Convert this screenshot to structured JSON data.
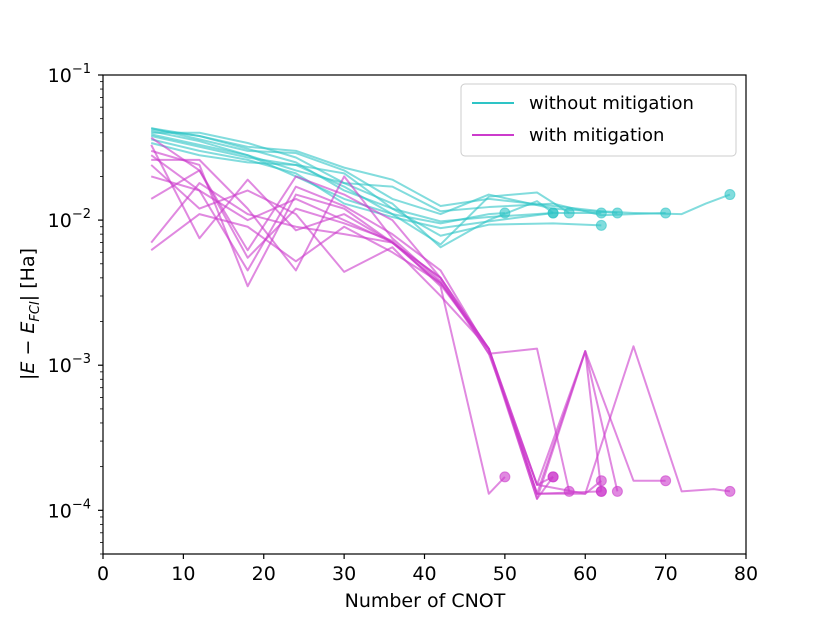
{
  "chart_data": {
    "type": "line",
    "title": "",
    "xlabel": "Number of CNOT",
    "ylabel": "|E − E_FCI| [Ha]",
    "ylabel_parts": {
      "a": "|",
      "b": "E",
      "c": " − ",
      "d": "E",
      "e": "FCI",
      "f": "| [Ha]"
    },
    "xscale": "linear",
    "yscale": "log",
    "xlim": [
      0,
      80
    ],
    "ylim": [
      5e-05,
      0.1
    ],
    "x_ticks": [
      0,
      10,
      20,
      30,
      40,
      50,
      60,
      70,
      80
    ],
    "x_tick_labels": [
      "0",
      "10",
      "20",
      "30",
      "40",
      "50",
      "60",
      "70",
      "80"
    ],
    "y_ticks": [
      0.0001,
      0.001,
      0.01,
      0.1
    ],
    "y_tick_labels": [
      {
        "base": "10",
        "exp": "−4"
      },
      {
        "base": "10",
        "exp": "−3"
      },
      {
        "base": "10",
        "exp": "−2"
      },
      {
        "base": "10",
        "exp": "−1"
      }
    ],
    "grid": false,
    "legend_position": "top-right",
    "legend": [
      {
        "label": "without mitigation",
        "color": "#2ec4c6"
      },
      {
        "label": "with mitigation",
        "color": "#cc3bcc"
      }
    ],
    "series": [
      {
        "group": "without mitigation",
        "color": "#2ec4c6",
        "x": [
          6,
          12,
          18,
          24,
          30,
          36,
          42,
          48,
          56
        ],
        "y": [
          0.043,
          0.038,
          0.031,
          0.025,
          0.016,
          0.012,
          0.0098,
          0.0105,
          0.0112
        ],
        "end_marker": true
      },
      {
        "group": "without mitigation",
        "color": "#2ec4c6",
        "x": [
          6,
          12,
          18,
          24,
          30,
          36,
          42,
          48,
          50
        ],
        "y": [
          0.041,
          0.035,
          0.028,
          0.02,
          0.014,
          0.011,
          0.0095,
          0.011,
          0.0112
        ],
        "end_marker": true
      },
      {
        "group": "without mitigation",
        "color": "#2ec4c6",
        "x": [
          6,
          12,
          18,
          24,
          30,
          36,
          42,
          48,
          54,
          56
        ],
        "y": [
          0.04,
          0.04,
          0.034,
          0.027,
          0.018,
          0.013,
          0.0065,
          0.01,
          0.0135,
          0.0112
        ],
        "end_marker": true
      },
      {
        "group": "without mitigation",
        "color": "#2ec4c6",
        "x": [
          6,
          12,
          18,
          24,
          30,
          36,
          42,
          48,
          54,
          58
        ],
        "y": [
          0.038,
          0.032,
          0.027,
          0.024,
          0.017,
          0.011,
          0.0068,
          0.0145,
          0.0155,
          0.0112
        ],
        "end_marker": true
      },
      {
        "group": "without mitigation",
        "color": "#2ec4c6",
        "x": [
          6,
          12,
          18,
          24,
          30,
          36,
          42,
          48,
          56,
          62
        ],
        "y": [
          0.036,
          0.03,
          0.026,
          0.021,
          0.013,
          0.0105,
          0.0088,
          0.0098,
          0.0112,
          0.0112
        ],
        "end_marker": true
      },
      {
        "group": "without mitigation",
        "color": "#2ec4c6",
        "x": [
          6,
          12,
          18,
          24,
          30,
          36,
          42,
          48,
          56,
          62
        ],
        "y": [
          0.034,
          0.028,
          0.025,
          0.024,
          0.021,
          0.012,
          0.0078,
          0.0093,
          0.0095,
          0.0092
        ],
        "end_marker": true
      },
      {
        "group": "without mitigation",
        "color": "#2ec4c6",
        "x": [
          6,
          12,
          18,
          24,
          30,
          36,
          42,
          48,
          56,
          64
        ],
        "y": [
          0.043,
          0.036,
          0.03,
          0.029,
          0.022,
          0.014,
          0.011,
          0.015,
          0.012,
          0.0112
        ],
        "end_marker": true
      },
      {
        "group": "without mitigation",
        "color": "#2ec4c6",
        "x": [
          6,
          12,
          18,
          24,
          30,
          36,
          42,
          48,
          56,
          62,
          70
        ],
        "y": [
          0.039,
          0.033,
          0.028,
          0.022,
          0.018,
          0.017,
          0.0115,
          0.0123,
          0.013,
          0.0108,
          0.0112
        ],
        "end_marker": true
      },
      {
        "group": "without mitigation",
        "color": "#2ec4c6",
        "x": [
          6,
          12,
          18,
          24,
          30,
          36,
          42,
          48,
          56,
          62,
          66,
          72,
          75,
          78
        ],
        "y": [
          0.042,
          0.038,
          0.032,
          0.03,
          0.023,
          0.019,
          0.0125,
          0.014,
          0.0125,
          0.0115,
          0.0112,
          0.011,
          0.013,
          0.015
        ],
        "end_marker": true
      },
      {
        "group": "with mitigation",
        "color": "#cc3bcc",
        "x": [
          6,
          12,
          18,
          24,
          30,
          36,
          42,
          48,
          50
        ],
        "y": [
          0.037,
          0.022,
          0.0055,
          0.012,
          0.0095,
          0.0072,
          0.0035,
          0.00013,
          0.00017
        ],
        "end_marker": true
      },
      {
        "group": "with mitigation",
        "color": "#cc3bcc",
        "x": [
          6,
          12,
          18,
          24,
          30,
          36,
          42,
          48,
          54,
          56
        ],
        "y": [
          0.033,
          0.0075,
          0.019,
          0.0085,
          0.011,
          0.007,
          0.0037,
          0.0013,
          0.00012,
          0.00017
        ],
        "end_marker": true
      },
      {
        "group": "with mitigation",
        "color": "#cc3bcc",
        "x": [
          6,
          12,
          18,
          24,
          30,
          36,
          42,
          48,
          54,
          56
        ],
        "y": [
          0.03,
          0.024,
          0.0035,
          0.015,
          0.012,
          0.007,
          0.004,
          0.0013,
          0.00015,
          0.00017
        ],
        "end_marker": true
      },
      {
        "group": "with mitigation",
        "color": "#cc3bcc",
        "x": [
          6,
          12,
          18,
          24,
          30,
          36,
          42,
          48,
          54,
          58
        ],
        "y": [
          0.026,
          0.026,
          0.012,
          0.0045,
          0.02,
          0.0075,
          0.0038,
          0.0012,
          0.0013,
          0.000135
        ],
        "end_marker": true
      },
      {
        "group": "with mitigation",
        "color": "#cc3bcc",
        "x": [
          6,
          12,
          18,
          24,
          30,
          36,
          42,
          48,
          54,
          62
        ],
        "y": [
          0.024,
          0.012,
          0.016,
          0.011,
          0.0044,
          0.0065,
          0.003,
          0.0013,
          0.00013,
          0.000135
        ],
        "end_marker": true
      },
      {
        "group": "with mitigation",
        "color": "#cc3bcc",
        "x": [
          6,
          12,
          18,
          24,
          30,
          36,
          42,
          48,
          54,
          60,
          62
        ],
        "y": [
          0.02,
          0.016,
          0.0045,
          0.017,
          0.0125,
          0.008,
          0.0045,
          0.00125,
          0.00012,
          0.00125,
          0.000135
        ],
        "end_marker": true
      },
      {
        "group": "with mitigation",
        "color": "#cc3bcc",
        "x": [
          6,
          12,
          18,
          24,
          30,
          36,
          42,
          48,
          54,
          60,
          62
        ],
        "y": [
          0.014,
          0.022,
          0.0062,
          0.02,
          0.015,
          0.01,
          0.004,
          0.0012,
          0.00015,
          0.00013,
          0.00016
        ],
        "end_marker": true
      },
      {
        "group": "with mitigation",
        "color": "#cc3bcc",
        "x": [
          6,
          12,
          18,
          24,
          30,
          36,
          42,
          48,
          54,
          60,
          64
        ],
        "y": [
          0.0062,
          0.011,
          0.009,
          0.0052,
          0.009,
          0.006,
          0.0037,
          0.0013,
          0.00015,
          0.00125,
          0.000135
        ],
        "end_marker": true
      },
      {
        "group": "with mitigation",
        "color": "#cc3bcc",
        "x": [
          6,
          12,
          18,
          24,
          30,
          36,
          42,
          48,
          54,
          60,
          66,
          70
        ],
        "y": [
          0.007,
          0.018,
          0.011,
          0.009,
          0.008,
          0.007,
          0.004,
          0.0013,
          0.00013,
          0.00125,
          0.00016,
          0.00016
        ],
        "end_marker": true
      },
      {
        "group": "with mitigation",
        "color": "#cc3bcc",
        "x": [
          6,
          12,
          18,
          24,
          30,
          36,
          42,
          48,
          54,
          60,
          66,
          72,
          76,
          78
        ],
        "y": [
          0.028,
          0.016,
          0.01,
          0.014,
          0.01,
          0.007,
          0.0036,
          0.0013,
          0.00013,
          0.00013,
          0.00135,
          0.000135,
          0.00014,
          0.000135
        ],
        "end_marker": true
      }
    ]
  }
}
